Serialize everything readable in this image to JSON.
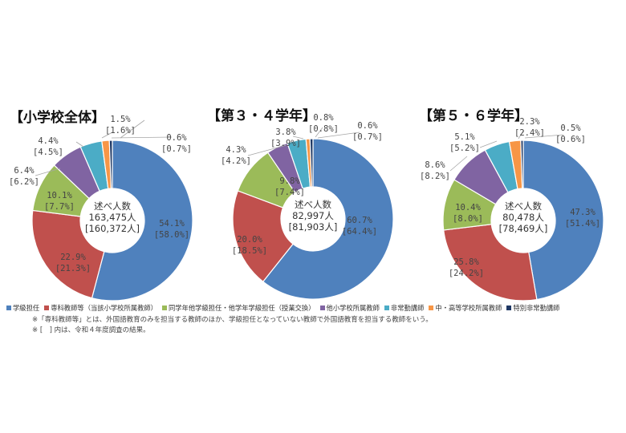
{
  "chart_data": [
    {
      "type": "pie",
      "title": "【小学校全体】",
      "center_label": [
        "述べ人数",
        "163,475人",
        "[160,372人]"
      ],
      "categories": [
        "学級担任",
        "専科教師等（当該小学校所属教師）",
        "同学年他学級担任・他学年学級担任（授業交換）",
        "他小学校所属教師",
        "非常勤講師",
        "中・高等学校所属教師",
        "特別非常勤講師"
      ],
      "values": [
        54.1,
        22.9,
        10.1,
        6.4,
        4.4,
        1.5,
        0.6
      ],
      "prev_values": [
        58.0,
        21.3,
        7.7,
        6.2,
        4.5,
        1.6,
        0.7
      ],
      "labels": [
        [
          "54.1%",
          "[58.0%]"
        ],
        [
          "22.9%",
          "[21.3%]"
        ],
        [
          "10.1%",
          "[7.7%]"
        ],
        [
          "6.4%",
          "[6.2%]"
        ],
        [
          "4.4%",
          "[4.5%]"
        ],
        [
          "1.5%",
          "[1.6%]"
        ],
        [
          "0.6%",
          "[0.7%]"
        ]
      ]
    },
    {
      "type": "pie",
      "title": "【第３・４学年】",
      "center_label": [
        "述べ人数",
        "82,997人",
        "[81,903人]"
      ],
      "categories": [
        "学級担任",
        "専科教師等（当該小学校所属教師）",
        "同学年他学級担任・他学年学級担任（授業交換）",
        "他小学校所属教師",
        "非常勤講師",
        "中・高等学校所属教師",
        "特別非常勤講師"
      ],
      "values": [
        60.7,
        20.0,
        9.8,
        4.3,
        3.8,
        0.8,
        0.6
      ],
      "prev_values": [
        64.4,
        18.5,
        7.4,
        4.2,
        3.9,
        0.8,
        0.7
      ],
      "labels": [
        [
          "60.7%",
          "[64.4%]"
        ],
        [
          "20.0%",
          "[18.5%]"
        ],
        [
          "9.8%",
          "[7.4%]"
        ],
        [
          "4.3%",
          "[4.2%]"
        ],
        [
          "3.8%",
          "[3.9%]"
        ],
        [
          "0.8%",
          "[0.8%]"
        ],
        [
          "0.6%",
          "[0.7%]"
        ]
      ]
    },
    {
      "type": "pie",
      "title": "【第５・６学年】",
      "center_label": [
        "述べ人数",
        "80,478人",
        "[78,469人]"
      ],
      "categories": [
        "学級担任",
        "専科教師等（当該小学校所属教師）",
        "同学年他学級担任・他学年学級担任（授業交換）",
        "他小学校所属教師",
        "非常勤講師",
        "中・高等学校所属教師",
        "特別非常勤講師"
      ],
      "values": [
        47.3,
        25.8,
        10.4,
        8.6,
        5.1,
        2.3,
        0.5
      ],
      "prev_values": [
        51.4,
        24.2,
        8.0,
        8.2,
        5.2,
        2.4,
        0.6
      ],
      "labels": [
        [
          "47.3%",
          "[51.4%]"
        ],
        [
          "25.8%",
          "[24.2%]"
        ],
        [
          "10.4%",
          "[8.0%]"
        ],
        [
          "8.6%",
          "[8.2%]"
        ],
        [
          "5.1%",
          "[5.2%]"
        ],
        [
          "2.3%",
          "[2.4%]"
        ],
        [
          "0.5%",
          "[0.6%]"
        ]
      ]
    }
  ],
  "colors": [
    "#4F81BD",
    "#C0504D",
    "#9BBB59",
    "#8064A2",
    "#4BACC6",
    "#F79646",
    "#1F3864"
  ],
  "legend": [
    "学級担任",
    "専科教師等（当該小学校所属教師）",
    "同学年他学級担任・他学年学級担任（授業交換）",
    "他小学校所属教師",
    "非常勤講師",
    "中・高等学校所属教師",
    "特別非常勤講師"
  ],
  "notes": {
    "note1": "※「専科教師等」とは、外国語教育のみを担当する教師のほか、学級担任となっていない教師で外国語教育を担当する教師をいう。",
    "note2": "※ [　] 内は、令和４年度調査の結果。"
  }
}
